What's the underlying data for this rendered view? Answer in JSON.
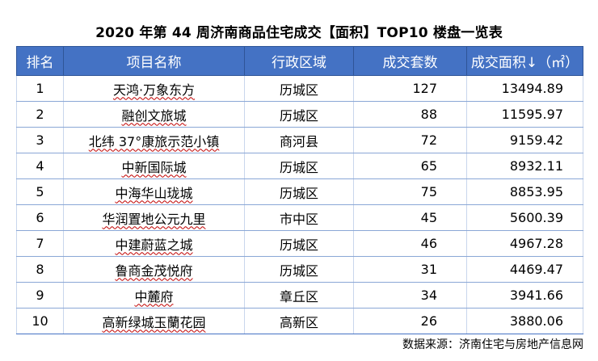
{
  "title": "2020 年第 44 周济南商品住宅成交【面积】TOP10 楼盘一览表",
  "headers": {
    "rank": "排名",
    "project": "项目名称",
    "district": "行政区域",
    "units": "成交套数",
    "area": "成交面积↓（㎡）"
  },
  "rows": [
    {
      "rank": "1",
      "project": "天鸿·万象东方",
      "district": "历城区",
      "units": "127",
      "area": "13494.89"
    },
    {
      "rank": "2",
      "project": "融创文旅城",
      "district": "历城区",
      "units": "88",
      "area": "11595.97"
    },
    {
      "rank": "3",
      "project": "北纬 37°康旅示范小镇",
      "district": "商河县",
      "units": "72",
      "area": "9159.42"
    },
    {
      "rank": "4",
      "project": "中新国际城",
      "district": "历城区",
      "units": "65",
      "area": "8932.11"
    },
    {
      "rank": "5",
      "project": "中海华山珑城",
      "district": "历城区",
      "units": "75",
      "area": "8853.95"
    },
    {
      "rank": "6",
      "project": "华润置地公元九里",
      "district": "市中区",
      "units": "45",
      "area": "5600.39"
    },
    {
      "rank": "7",
      "project": "中建蔚蓝之城",
      "district": "历城区",
      "units": "46",
      "area": "4967.28"
    },
    {
      "rank": "8",
      "project": "鲁商金茂悦府",
      "district": "历城区",
      "units": "31",
      "area": "4469.47"
    },
    {
      "rank": "9",
      "project": "中麓府",
      "district": "章丘区",
      "units": "34",
      "area": "3941.66"
    },
    {
      "rank": "10",
      "project": "高新绿城玉蘭花园",
      "district": "高新区",
      "units": "26",
      "area": "3880.06"
    }
  ],
  "source": "数据来源：济南住宅与房地产信息网",
  "colors": {
    "header_bg": "#4472c4",
    "header_text": "#ffffff"
  }
}
